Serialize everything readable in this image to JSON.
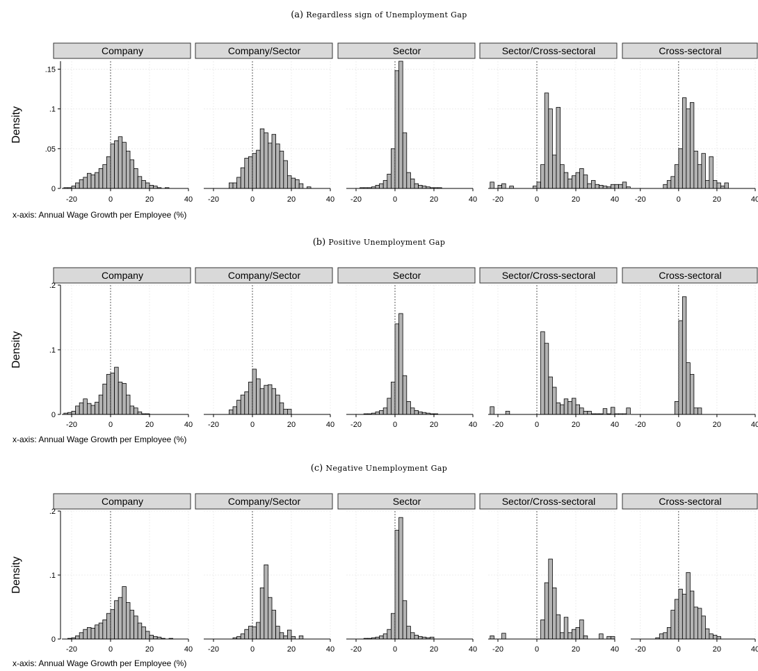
{
  "figure": {
    "x_note": "x-axis: Annual Wage Growth per Employee (%)",
    "y_label": "Density"
  },
  "chart_data": [
    {
      "type": "bar",
      "caption_letter": "(a)",
      "caption_text": "Regardless sign of Unemployment Gap",
      "ylim": [
        0,
        0.16
      ],
      "yticks": [
        {
          "v": 0,
          "t": "0"
        },
        {
          "v": 0.05,
          "t": ".05"
        },
        {
          "v": 0.1,
          "t": ".1"
        },
        {
          "v": 0.15,
          "t": ".15"
        }
      ],
      "xlim": [
        -25,
        40
      ],
      "xticks": [
        {
          "v": -20,
          "t": "-20"
        },
        {
          "v": 0,
          "t": "0"
        },
        {
          "v": 20,
          "t": "20"
        },
        {
          "v": 40,
          "t": "40"
        }
      ],
      "bin_width": 2,
      "panels": [
        {
          "title": "Company",
          "first_bin": -24,
          "values": [
            0.001,
            0.001,
            0.003,
            0.007,
            0.011,
            0.014,
            0.019,
            0.017,
            0.02,
            0.025,
            0.03,
            0.04,
            0.056,
            0.06,
            0.065,
            0.058,
            0.047,
            0.036,
            0.025,
            0.015,
            0.01,
            0.007,
            0.004,
            0.003,
            0.001,
            0,
            0.001,
            0,
            0,
            0,
            0
          ]
        },
        {
          "title": "Company/Sector",
          "first_bin": -12,
          "values": [
            0.007,
            0.007,
            0.014,
            0.026,
            0.038,
            0.04,
            0.044,
            0.048,
            0.075,
            0.07,
            0.057,
            0.068,
            0.056,
            0.047,
            0.035,
            0.016,
            0.013,
            0.011,
            0.006,
            0,
            0.002
          ]
        },
        {
          "title": "Sector",
          "first_bin": -18,
          "values": [
            0.001,
            0.001,
            0.001,
            0.002,
            0.004,
            0.006,
            0.01,
            0.018,
            0.05,
            0.148,
            0.16,
            0.07,
            0.02,
            0.012,
            0.006,
            0.004,
            0.003,
            0.002,
            0.001,
            0.001,
            0.001
          ]
        },
        {
          "title": "Sector/Cross-sectoral",
          "first_bin": -24,
          "values": [
            0.008,
            0,
            0.004,
            0.006,
            0,
            0.003,
            0,
            0,
            0,
            0,
            0,
            0.003,
            0.008,
            0.03,
            0.12,
            0.1,
            0.042,
            0.102,
            0.03,
            0.02,
            0.012,
            0.016,
            0.02,
            0.025,
            0.017,
            0.006,
            0.01,
            0.005,
            0.004,
            0.003,
            0.002,
            0.005,
            0.005,
            0.005,
            0.008,
            0.002
          ]
        },
        {
          "title": "Cross-sectoral",
          "first_bin": -8,
          "values": [
            0.005,
            0.01,
            0.015,
            0.03,
            0.05,
            0.114,
            0.1,
            0.108,
            0.047,
            0.03,
            0.044,
            0.01,
            0.04,
            0.01,
            0.007,
            0.003,
            0.007
          ]
        }
      ]
    },
    {
      "type": "bar",
      "caption_letter": "(b)",
      "caption_text": "Positive Unemployment Gap",
      "ylim": [
        0,
        0.2
      ],
      "yticks": [
        {
          "v": 0,
          "t": "0"
        },
        {
          "v": 0.1,
          "t": ".1"
        },
        {
          "v": 0.2,
          "t": ".2"
        }
      ],
      "xlim": [
        -25,
        40
      ],
      "xticks": [
        {
          "v": -20,
          "t": "-20"
        },
        {
          "v": 0,
          "t": "0"
        },
        {
          "v": 20,
          "t": "20"
        },
        {
          "v": 40,
          "t": "40"
        }
      ],
      "bin_width": 2,
      "panels": [
        {
          "title": "Company",
          "first_bin": -24,
          "values": [
            0.002,
            0.003,
            0.005,
            0.013,
            0.018,
            0.024,
            0.017,
            0.014,
            0.019,
            0.03,
            0.047,
            0.062,
            0.064,
            0.073,
            0.05,
            0.048,
            0.03,
            0.013,
            0.01,
            0.004,
            0.001,
            0.001
          ]
        },
        {
          "title": "Company/Sector",
          "first_bin": -12,
          "values": [
            0.007,
            0.012,
            0.022,
            0.03,
            0.035,
            0.05,
            0.07,
            0.055,
            0.04,
            0.045,
            0.046,
            0.04,
            0.03,
            0.018,
            0.008,
            0.008
          ]
        },
        {
          "title": "Sector",
          "first_bin": -18,
          "values": [
            0,
            0.001,
            0.001,
            0.002,
            0.004,
            0.006,
            0.01,
            0.025,
            0.05,
            0.14,
            0.156,
            0.06,
            0.02,
            0.01,
            0.006,
            0.004,
            0.003,
            0.002,
            0.001,
            0.001
          ]
        },
        {
          "title": "Sector/Cross-sectoral",
          "first_bin": -24,
          "values": [
            0.012,
            0,
            0,
            0,
            0.005,
            0,
            0,
            0,
            0,
            0,
            0,
            0,
            0,
            0.128,
            0.11,
            0.058,
            0.042,
            0.018,
            0.015,
            0.024,
            0.02,
            0.025,
            0.015,
            0.01,
            0.005,
            0.005,
            0.001,
            0.001,
            0.001,
            0.009,
            0.001,
            0.011,
            0.001,
            0.001,
            0.001,
            0.01
          ]
        },
        {
          "title": "Cross-sectoral",
          "first_bin": -2,
          "values": [
            0.02,
            0.145,
            0.182,
            0.08,
            0.062,
            0.01,
            0.01
          ]
        }
      ]
    },
    {
      "type": "bar",
      "caption_letter": "(c)",
      "caption_text": "Negative Unemployment Gap",
      "ylim": [
        0,
        0.2
      ],
      "yticks": [
        {
          "v": 0,
          "t": "0"
        },
        {
          "v": 0.1,
          "t": ".1"
        },
        {
          "v": 0.2,
          "t": ".2"
        }
      ],
      "xlim": [
        -25,
        40
      ],
      "xticks": [
        {
          "v": -20,
          "t": "-20"
        },
        {
          "v": 0,
          "t": "0"
        },
        {
          "v": 20,
          "t": "20"
        },
        {
          "v": 40,
          "t": "40"
        }
      ],
      "bin_width": 2,
      "panels": [
        {
          "title": "Company",
          "first_bin": -22,
          "values": [
            0.001,
            0.002,
            0.005,
            0.01,
            0.015,
            0.018,
            0.017,
            0.022,
            0.025,
            0.03,
            0.04,
            0.046,
            0.06,
            0.065,
            0.082,
            0.057,
            0.045,
            0.036,
            0.025,
            0.019,
            0.012,
            0.006,
            0.004,
            0.003,
            0.001,
            0,
            0.001,
            0,
            0
          ]
        },
        {
          "title": "Company/Sector",
          "first_bin": -10,
          "values": [
            0.002,
            0.004,
            0.008,
            0.015,
            0.02,
            0.019,
            0.026,
            0.08,
            0.116,
            0.065,
            0.045,
            0.02,
            0.01,
            0.005,
            0.014,
            0.004,
            0,
            0.005
          ]
        },
        {
          "title": "Sector",
          "first_bin": -18,
          "values": [
            0,
            0.001,
            0.001,
            0.002,
            0.003,
            0.005,
            0.008,
            0.015,
            0.04,
            0.17,
            0.19,
            0.06,
            0.02,
            0.01,
            0.006,
            0.004,
            0.003,
            0.002,
            0.003
          ]
        },
        {
          "title": "Sector/Cross-sectoral",
          "first_bin": -24,
          "values": [
            0.005,
            0,
            0,
            0.009,
            0,
            0,
            0,
            0,
            0,
            0,
            0,
            0,
            0,
            0.03,
            0.088,
            0.125,
            0.08,
            0.038,
            0.01,
            0.034,
            0.01,
            0.015,
            0.018,
            0.03,
            0.005,
            0,
            0,
            0,
            0.008,
            0,
            0.004,
            0.004
          ]
        },
        {
          "title": "Cross-sectoral",
          "first_bin": -12,
          "values": [
            0.002,
            0.008,
            0.01,
            0.018,
            0.045,
            0.062,
            0.078,
            0.07,
            0.104,
            0.075,
            0.05,
            0.048,
            0.036,
            0.016,
            0.008,
            0.006,
            0.004
          ]
        }
      ]
    }
  ]
}
